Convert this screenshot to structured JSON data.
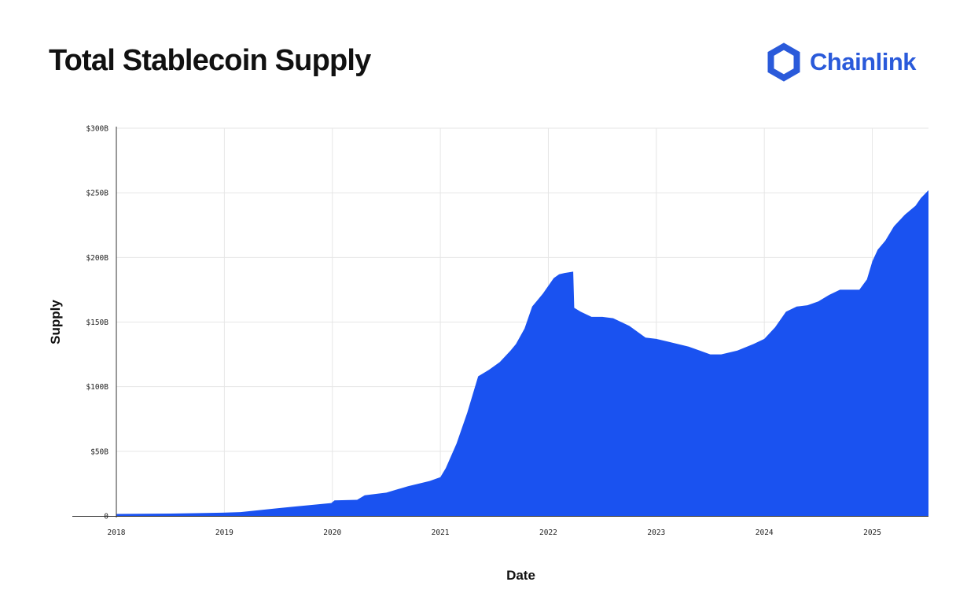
{
  "header": {
    "title": "Total Stablecoin Supply",
    "brand_name": "Chainlink",
    "brand_icon": "hexagon-logo-icon",
    "brand_color": "#2A5ADA"
  },
  "chart_data": {
    "type": "area",
    "title": "Total Stablecoin Supply",
    "xlabel": "Date",
    "ylabel": "Supply",
    "color": "#1A52F0",
    "grid": true,
    "xlim": [
      2018.0,
      2025.52
    ],
    "ylim": [
      0,
      300
    ],
    "y_unit": "billion USD",
    "x_ticks": [
      {
        "value": 2018,
        "label": "2018"
      },
      {
        "value": 2019,
        "label": "2019"
      },
      {
        "value": 2020,
        "label": "2020"
      },
      {
        "value": 2021,
        "label": "2021"
      },
      {
        "value": 2022,
        "label": "2022"
      },
      {
        "value": 2023,
        "label": "2023"
      },
      {
        "value": 2024,
        "label": "2024"
      },
      {
        "value": 2025,
        "label": "2025"
      }
    ],
    "y_ticks": [
      {
        "value": 0,
        "label": "0"
      },
      {
        "value": 50,
        "label": "$50B"
      },
      {
        "value": 100,
        "label": "$100B"
      },
      {
        "value": 150,
        "label": "$150B"
      },
      {
        "value": 200,
        "label": "$200B"
      },
      {
        "value": 250,
        "label": "$250B"
      },
      {
        "value": 300,
        "label": "$300B"
      }
    ],
    "series": [
      {
        "x": [
          2018.0,
          2018.5,
          2018.98,
          2019.15,
          2019.5,
          2019.99,
          2020.02,
          2020.23,
          2020.3,
          2020.5,
          2020.7,
          2020.9,
          2021.0,
          2021.05,
          2021.15,
          2021.25,
          2021.35,
          2021.45,
          2021.55,
          2021.65,
          2021.7,
          2021.78,
          2021.85,
          2021.95,
          2022.05,
          2022.1,
          2022.15,
          2022.23,
          2022.24,
          2022.3,
          2022.4,
          2022.5,
          2022.6,
          2022.75,
          2022.9,
          2023.0,
          2023.1,
          2023.3,
          2023.5,
          2023.6,
          2023.75,
          2023.9,
          2024.0,
          2024.1,
          2024.2,
          2024.3,
          2024.4,
          2024.5,
          2024.6,
          2024.7,
          2024.88,
          2024.95,
          2025.0,
          2025.05,
          2025.12,
          2025.2,
          2025.3,
          2025.4,
          2025.45,
          2025.52
        ],
        "y": [
          1.5,
          1.8,
          2.5,
          3,
          6,
          10,
          12,
          12.5,
          16,
          18,
          23,
          27,
          30,
          37,
          56,
          80,
          108,
          113,
          119,
          128,
          133,
          145,
          162,
          172,
          184,
          187,
          188,
          189,
          161,
          158,
          154,
          154,
          153,
          147,
          138,
          137,
          135,
          131,
          125,
          125,
          128,
          133,
          137,
          146,
          158,
          162,
          163,
          166,
          171,
          175,
          175,
          183,
          197,
          206,
          213,
          224,
          233,
          240,
          246,
          252
        ]
      }
    ]
  }
}
